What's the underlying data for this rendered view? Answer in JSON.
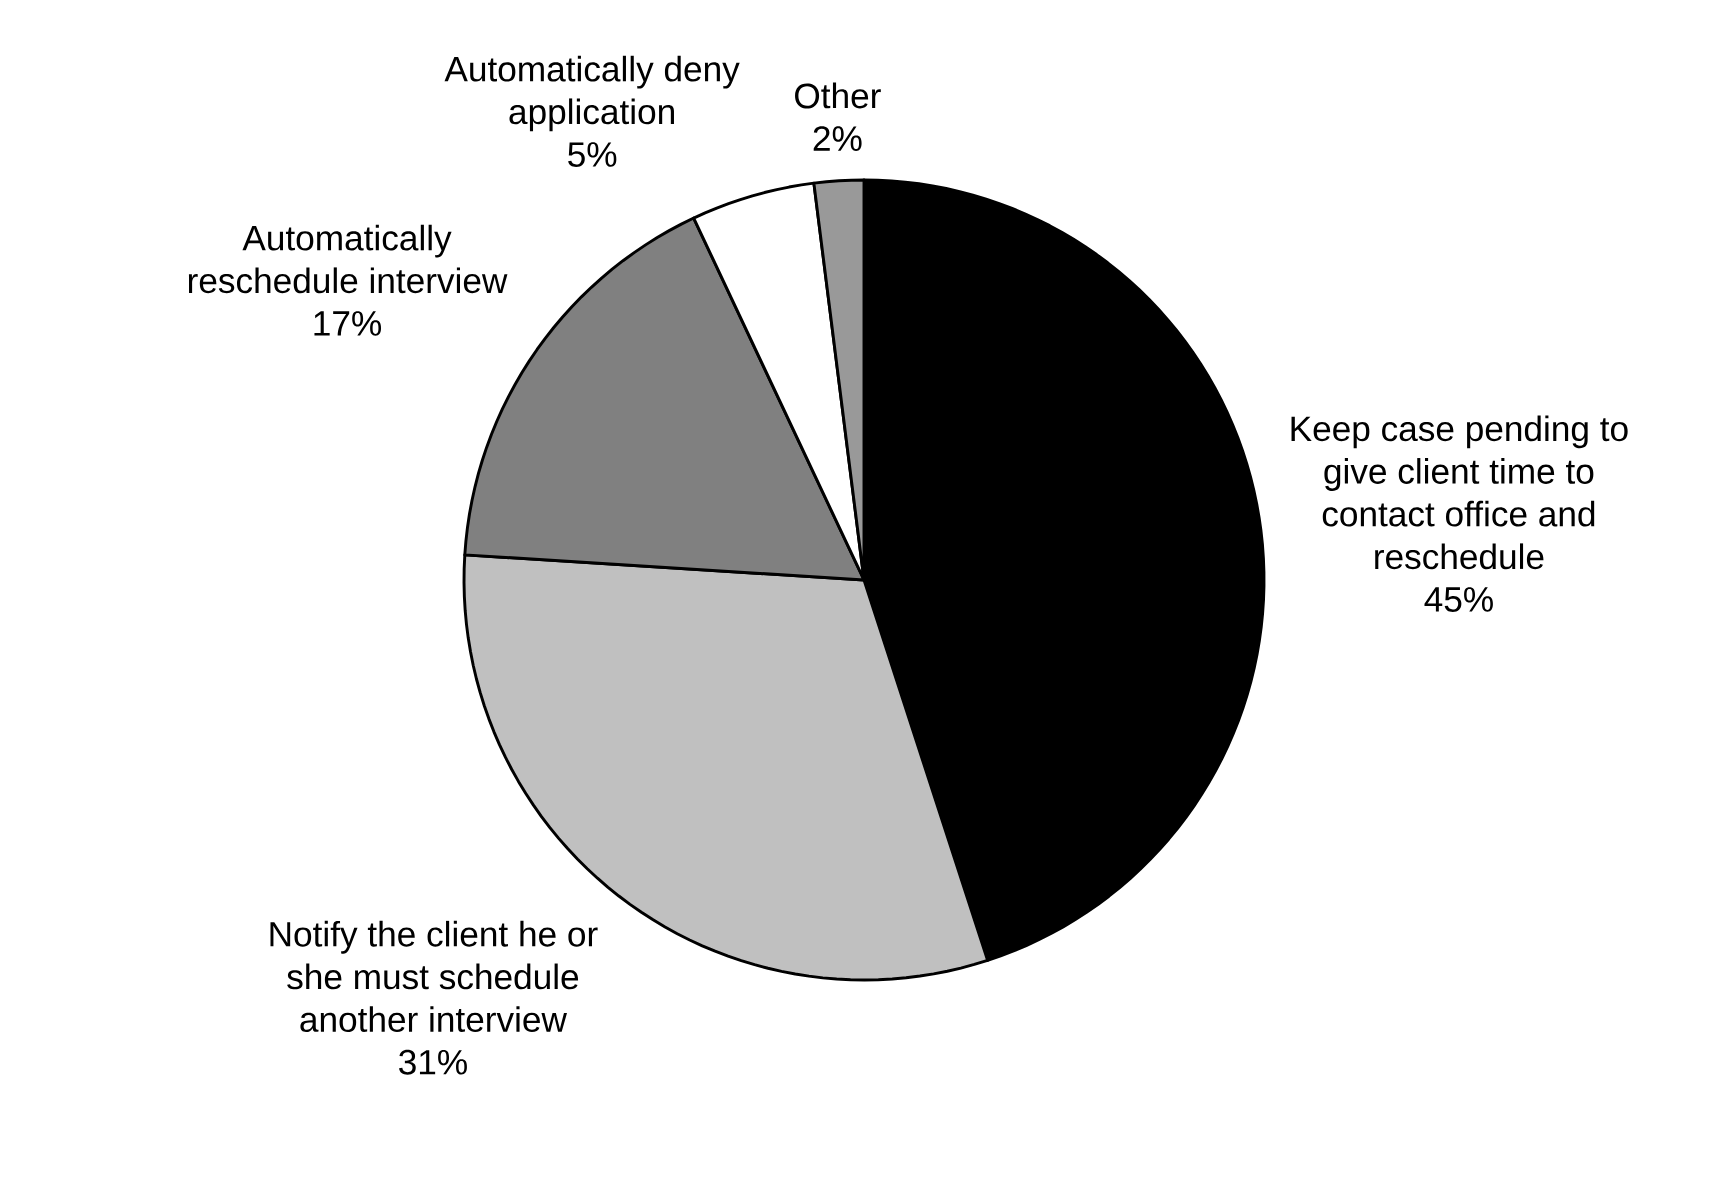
{
  "chart_data": {
    "type": "pie",
    "categories": [
      "Keep case pending to give client time to contact office and reschedule",
      "Notify the client he or she must schedule another interview",
      "Automatically reschedule interview",
      "Automatically deny application",
      "Other"
    ],
    "values": [
      45,
      31,
      17,
      5,
      2
    ],
    "value_labels": [
      "45%",
      "31%",
      "17%",
      "5%",
      "2%"
    ],
    "colors": [
      "#000000",
      "#c0c0c0",
      "#808080",
      "#ffffff",
      "#999999"
    ]
  }
}
